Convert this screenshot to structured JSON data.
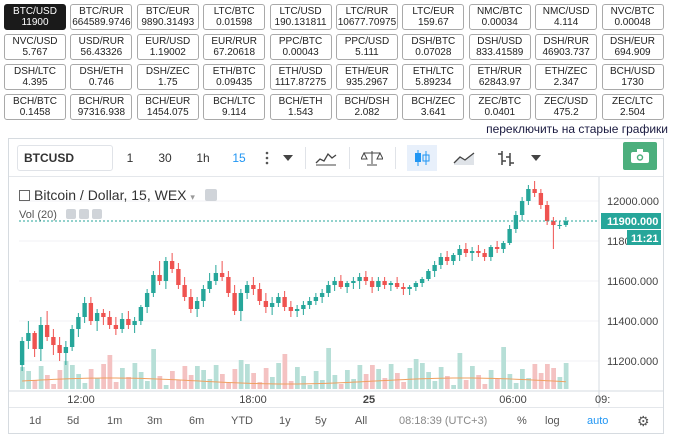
{
  "tickers": [
    {
      "pair": "BTC/USD",
      "price": "11900",
      "active": true
    },
    {
      "pair": "BTC/RUR",
      "price": "664589.9746"
    },
    {
      "pair": "BTC/EUR",
      "price": "9890.31493"
    },
    {
      "pair": "LTC/BTC",
      "price": "0.01598"
    },
    {
      "pair": "LTC/USD",
      "price": "190.131811"
    },
    {
      "pair": "LTC/RUR",
      "price": "10677.70975"
    },
    {
      "pair": "LTC/EUR",
      "price": "159.67"
    },
    {
      "pair": "NMC/BTC",
      "price": "0.00034"
    },
    {
      "pair": "NMC/USD",
      "price": "4.114"
    },
    {
      "pair": "NVC/BTC",
      "price": "0.00048"
    },
    {
      "pair": "NVC/USD",
      "price": "5.767"
    },
    {
      "pair": "USD/RUR",
      "price": "56.43326"
    },
    {
      "pair": "EUR/USD",
      "price": "1.19002"
    },
    {
      "pair": "EUR/RUR",
      "price": "67.20618"
    },
    {
      "pair": "PPC/BTC",
      "price": "0.00043"
    },
    {
      "pair": "PPC/USD",
      "price": "5.111"
    },
    {
      "pair": "DSH/BTC",
      "price": "0.07028"
    },
    {
      "pair": "DSH/USD",
      "price": "833.41589"
    },
    {
      "pair": "DSH/RUR",
      "price": "46903.737"
    },
    {
      "pair": "DSH/EUR",
      "price": "694.909"
    },
    {
      "pair": "DSH/LTC",
      "price": "4.395"
    },
    {
      "pair": "DSH/ETH",
      "price": "0.746"
    },
    {
      "pair": "DSH/ZEC",
      "price": "1.75"
    },
    {
      "pair": "ETH/BTC",
      "price": "0.09435"
    },
    {
      "pair": "ETH/USD",
      "price": "1117.87275"
    },
    {
      "pair": "ETH/EUR",
      "price": "935.2967"
    },
    {
      "pair": "ETH/LTC",
      "price": "5.89234"
    },
    {
      "pair": "ETH/RUR",
      "price": "62843.97"
    },
    {
      "pair": "ETH/ZEC",
      "price": "2.347"
    },
    {
      "pair": "BCH/USD",
      "price": "1730"
    },
    {
      "pair": "BCH/BTC",
      "price": "0.1458"
    },
    {
      "pair": "BCH/RUR",
      "price": "97316.938"
    },
    {
      "pair": "BCH/EUR",
      "price": "1454.075"
    },
    {
      "pair": "BCH/LTC",
      "price": "9.114"
    },
    {
      "pair": "BCH/ETH",
      "price": "1.543"
    },
    {
      "pair": "BCH/DSH",
      "price": "2.082"
    },
    {
      "pair": "BCH/ZEC",
      "price": "3.641"
    },
    {
      "pair": "ZEC/BTC",
      "price": "0.0401"
    },
    {
      "pair": "ZEC/USD",
      "price": "475.2"
    },
    {
      "pair": "ZEC/LTC",
      "price": "2.504"
    }
  ],
  "switch_link": "переключить на старые графики",
  "toolbar": {
    "symbol": "BTCUSD",
    "intervals": [
      "1",
      "30",
      "1h",
      "15"
    ],
    "active_interval": "15"
  },
  "legend": {
    "title": "Bitcoin / Dollar, 15, WEX",
    "volume": "Vol (20)"
  },
  "price_axis": {
    "ticks": [
      "12000.000",
      "11800.000",
      "11600.000",
      "11400.000",
      "11200.000"
    ],
    "current_price": "11900.000",
    "countdown": "11:21"
  },
  "time_axis": [
    "12:00",
    "18:00",
    "25",
    "06:00",
    "09:"
  ],
  "bottom": {
    "ranges": [
      "1d",
      "5d",
      "1m",
      "3m",
      "6m",
      "YTD",
      "1y",
      "5y",
      "All"
    ],
    "clock": "08:18:39 (UTC+3)",
    "pct": "%",
    "log": "log",
    "auto": "auto"
  },
  "colors": {
    "up": "#26a69a",
    "down": "#ef5350",
    "accent": "#2196f3",
    "price_badge": "#26a69a",
    "volume_up": "#b7dfd7",
    "volume_down": "#f4c2c2",
    "ma_line": "#f0a060"
  },
  "chart_data": {
    "type": "candlestick",
    "symbol": "BTCUSD",
    "interval_minutes": 15,
    "price_range": [
      11060,
      12100
    ],
    "candles": [
      [
        11180,
        11320,
        11150,
        11300
      ],
      [
        11300,
        11400,
        11260,
        11340
      ],
      [
        11340,
        11350,
        11220,
        11260
      ],
      [
        11260,
        11420,
        11200,
        11380
      ],
      [
        11380,
        11450,
        11300,
        11320
      ],
      [
        11320,
        11360,
        11230,
        11280
      ],
      [
        11280,
        11320,
        11200,
        11240
      ],
      [
        11240,
        11300,
        11180,
        11270
      ],
      [
        11270,
        11380,
        11250,
        11360
      ],
      [
        11360,
        11440,
        11320,
        11420
      ],
      [
        11420,
        11520,
        11390,
        11490
      ],
      [
        11490,
        11520,
        11380,
        11400
      ],
      [
        11400,
        11460,
        11350,
        11440
      ],
      [
        11440,
        11460,
        11380,
        11420
      ],
      [
        11420,
        11450,
        11360,
        11380
      ],
      [
        11380,
        11420,
        11330,
        11360
      ],
      [
        11360,
        11440,
        11340,
        11410
      ],
      [
        11410,
        11450,
        11360,
        11380
      ],
      [
        11380,
        11420,
        11340,
        11400
      ],
      [
        11400,
        11480,
        11380,
        11470
      ],
      [
        11470,
        11560,
        11440,
        11540
      ],
      [
        11540,
        11650,
        11520,
        11630
      ],
      [
        11630,
        11700,
        11580,
        11600
      ],
      [
        11600,
        11720,
        11560,
        11700
      ],
      [
        11700,
        11740,
        11640,
        11660
      ],
      [
        11660,
        11690,
        11560,
        11580
      ],
      [
        11580,
        11620,
        11500,
        11520
      ],
      [
        11520,
        11560,
        11440,
        11460
      ],
      [
        11460,
        11520,
        11420,
        11500
      ],
      [
        11500,
        11580,
        11470,
        11560
      ],
      [
        11560,
        11640,
        11540,
        11600
      ],
      [
        11600,
        11680,
        11580,
        11640
      ],
      [
        11640,
        11700,
        11600,
        11620
      ],
      [
        11620,
        11650,
        11520,
        11540
      ],
      [
        11540,
        11580,
        11430,
        11450
      ],
      [
        11450,
        11560,
        11400,
        11540
      ],
      [
        11540,
        11600,
        11510,
        11580
      ],
      [
        11580,
        11620,
        11530,
        11560
      ],
      [
        11560,
        11590,
        11480,
        11500
      ],
      [
        11500,
        11540,
        11440,
        11470
      ],
      [
        11470,
        11520,
        11430,
        11490
      ],
      [
        11490,
        11540,
        11470,
        11520
      ],
      [
        11520,
        11550,
        11450,
        11470
      ],
      [
        11470,
        11500,
        11420,
        11450
      ],
      [
        11450,
        11480,
        11420,
        11460
      ],
      [
        11460,
        11500,
        11430,
        11480
      ],
      [
        11480,
        11520,
        11460,
        11500
      ],
      [
        11500,
        11540,
        11480,
        11520
      ],
      [
        11520,
        11560,
        11490,
        11540
      ],
      [
        11540,
        11600,
        11520,
        11580
      ],
      [
        11580,
        11620,
        11550,
        11600
      ],
      [
        11600,
        11630,
        11560,
        11570
      ],
      [
        11570,
        11600,
        11540,
        11590
      ],
      [
        11590,
        11620,
        11560,
        11600
      ],
      [
        11600,
        11640,
        11560,
        11620
      ],
      [
        11620,
        11650,
        11580,
        11600
      ],
      [
        11600,
        11620,
        11540,
        11570
      ],
      [
        11570,
        11620,
        11550,
        11600
      ],
      [
        11600,
        11620,
        11560,
        11580
      ],
      [
        11580,
        11600,
        11550,
        11590
      ],
      [
        11590,
        11620,
        11560,
        11570
      ],
      [
        11570,
        11590,
        11530,
        11560
      ],
      [
        11560,
        11580,
        11530,
        11570
      ],
      [
        11570,
        11600,
        11550,
        11590
      ],
      [
        11590,
        11620,
        11570,
        11610
      ],
      [
        11610,
        11660,
        11600,
        11650
      ],
      [
        11650,
        11700,
        11620,
        11680
      ],
      [
        11680,
        11740,
        11660,
        11720
      ],
      [
        11720,
        11750,
        11680,
        11700
      ],
      [
        11700,
        11740,
        11680,
        11730
      ],
      [
        11730,
        11780,
        11700,
        11760
      ],
      [
        11760,
        11790,
        11720,
        11740
      ],
      [
        11740,
        11770,
        11700,
        11750
      ],
      [
        11750,
        11780,
        11720,
        11740
      ],
      [
        11740,
        11760,
        11700,
        11720
      ],
      [
        11720,
        11780,
        11700,
        11770
      ],
      [
        11770,
        11800,
        11740,
        11760
      ],
      [
        11760,
        11800,
        11740,
        11790
      ],
      [
        11790,
        11880,
        11780,
        11860
      ],
      [
        11860,
        11950,
        11840,
        11930
      ],
      [
        11930,
        12020,
        11900,
        12000
      ],
      [
        12000,
        12080,
        11980,
        12060
      ],
      [
        12060,
        12100,
        12020,
        12040
      ],
      [
        12040,
        12060,
        11960,
        11980
      ],
      [
        11980,
        12000,
        11880,
        11900
      ],
      [
        11900,
        11920,
        11760,
        11880
      ],
      [
        11880,
        11900,
        11860,
        11880
      ],
      [
        11880,
        11920,
        11870,
        11900
      ]
    ],
    "volume": "shown as histogram below price, unlabeled",
    "x_labels": [
      "12:00",
      "18:00",
      "25",
      "06:00"
    ],
    "y_ticks": [
      12000,
      11800,
      11600,
      11400,
      11200
    ]
  }
}
